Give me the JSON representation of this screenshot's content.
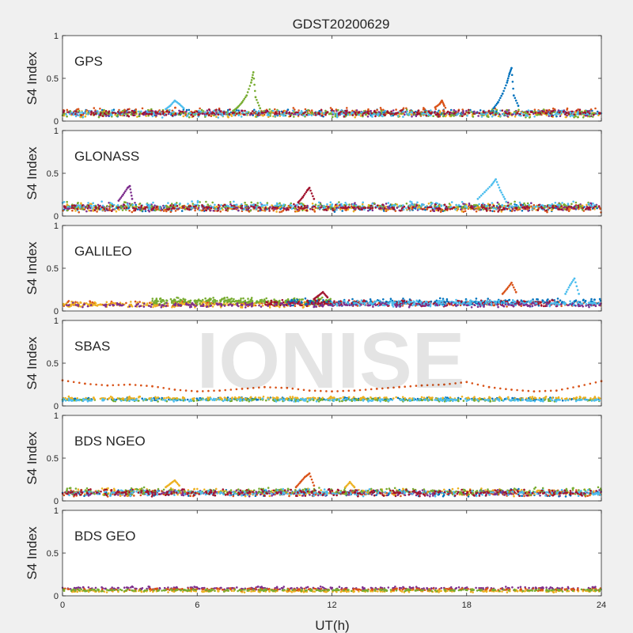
{
  "watermark": "IONISE",
  "chart_data": [
    {
      "type": "scatter",
      "title": "GDST20200629",
      "panel_label": "GPS",
      "ylabel": "S4 Index",
      "xlabel": "",
      "xlim": [
        0,
        24
      ],
      "ylim": [
        0,
        1
      ],
      "xticks": [
        "0",
        "6",
        "12",
        "18",
        "24"
      ],
      "yticks": [
        "0",
        "0.5",
        "1"
      ],
      "baseline": [
        0.03,
        0.17
      ],
      "bands": [
        {
          "color": "#0072BD",
          "x": [
            0,
            24
          ],
          "y": [
            0.05,
            0.14
          ]
        },
        {
          "color": "#D95319",
          "x": [
            0,
            24
          ],
          "y": [
            0.05,
            0.16
          ]
        },
        {
          "color": "#EDB120",
          "x": [
            0,
            24
          ],
          "y": [
            0.04,
            0.13
          ]
        },
        {
          "color": "#7E2F8E",
          "x": [
            0,
            24
          ],
          "y": [
            0.05,
            0.13
          ]
        },
        {
          "color": "#77AC30",
          "x": [
            0,
            24
          ],
          "y": [
            0.04,
            0.14
          ]
        },
        {
          "color": "#4DBEEE",
          "x": [
            0,
            24
          ],
          "y": [
            0.04,
            0.13
          ]
        },
        {
          "color": "#A2142F",
          "x": [
            0,
            24
          ],
          "y": [
            0.05,
            0.14
          ]
        }
      ],
      "series": [
        {
          "color": "#77AC30",
          "x": [
            7.6,
            7.8,
            8.0,
            8.2,
            8.4,
            8.5,
            8.6,
            8.8
          ],
          "y": [
            0.12,
            0.16,
            0.22,
            0.3,
            0.45,
            0.57,
            0.28,
            0.15
          ]
        },
        {
          "color": "#0072BD",
          "x": [
            19.2,
            19.4,
            19.6,
            19.8,
            19.9,
            20.0,
            20.1,
            20.3
          ],
          "y": [
            0.15,
            0.22,
            0.32,
            0.45,
            0.55,
            0.62,
            0.3,
            0.18
          ]
        },
        {
          "color": "#4DBEEE",
          "x": [
            4.6,
            4.8,
            5.0,
            5.2,
            5.4
          ],
          "y": [
            0.14,
            0.18,
            0.24,
            0.2,
            0.15
          ]
        },
        {
          "color": "#D95319",
          "x": [
            16.6,
            16.8,
            16.9,
            17.0
          ],
          "y": [
            0.16,
            0.2,
            0.24,
            0.18
          ]
        }
      ]
    },
    {
      "type": "scatter",
      "panel_label": "GLONASS",
      "ylabel": "S4 Index",
      "xlabel": "",
      "xlim": [
        0,
        24
      ],
      "ylim": [
        0,
        1
      ],
      "xticks": [
        "0",
        "6",
        "12",
        "18",
        "24"
      ],
      "yticks": [
        "0",
        "0.5",
        "1"
      ],
      "baseline": [
        0.04,
        0.18
      ],
      "bands": [
        {
          "color": "#0072BD",
          "x": [
            0,
            24
          ],
          "y": [
            0.05,
            0.14
          ]
        },
        {
          "color": "#D95319",
          "x": [
            0,
            24
          ],
          "y": [
            0.04,
            0.13
          ]
        },
        {
          "color": "#EDB120",
          "x": [
            0,
            24
          ],
          "y": [
            0.05,
            0.15
          ]
        },
        {
          "color": "#7E2F8E",
          "x": [
            0,
            24
          ],
          "y": [
            0.05,
            0.16
          ]
        },
        {
          "color": "#77AC30",
          "x": [
            0,
            24
          ],
          "y": [
            0.06,
            0.17
          ]
        },
        {
          "color": "#4DBEEE",
          "x": [
            0,
            24
          ],
          "y": [
            0.06,
            0.18
          ]
        },
        {
          "color": "#A2142F",
          "x": [
            0,
            24
          ],
          "y": [
            0.05,
            0.14
          ]
        }
      ],
      "series": [
        {
          "color": "#7E2F8E",
          "x": [
            2.5,
            2.7,
            2.9,
            3.0,
            3.1
          ],
          "y": [
            0.18,
            0.25,
            0.33,
            0.35,
            0.2
          ]
        },
        {
          "color": "#A2142F",
          "x": [
            10.5,
            10.7,
            10.9,
            11.0,
            11.2
          ],
          "y": [
            0.16,
            0.22,
            0.3,
            0.33,
            0.2
          ]
        },
        {
          "color": "#4DBEEE",
          "x": [
            18.5,
            18.8,
            19.1,
            19.3,
            19.5,
            19.7
          ],
          "y": [
            0.2,
            0.28,
            0.36,
            0.43,
            0.3,
            0.2
          ]
        }
      ]
    },
    {
      "type": "scatter",
      "panel_label": "GALILEO",
      "ylabel": "S4 Index",
      "xlabel": "",
      "xlim": [
        0,
        24
      ],
      "ylim": [
        0,
        1
      ],
      "xticks": [
        "0",
        "6",
        "12",
        "18",
        "24"
      ],
      "yticks": [
        "0",
        "0.5",
        "1"
      ],
      "baseline": [
        0.05,
        0.14
      ],
      "bands": [
        {
          "color": "#D95319",
          "x": [
            0,
            24
          ],
          "y": [
            0.05,
            0.12
          ]
        },
        {
          "color": "#EDB120",
          "x": [
            0,
            11
          ],
          "y": [
            0.04,
            0.11
          ]
        },
        {
          "color": "#77AC30",
          "x": [
            4,
            12
          ],
          "y": [
            0.07,
            0.16
          ]
        },
        {
          "color": "#0072BD",
          "x": [
            10,
            24
          ],
          "y": [
            0.06,
            0.15
          ]
        },
        {
          "color": "#A2142F",
          "x": [
            9,
            22
          ],
          "y": [
            0.05,
            0.13
          ]
        },
        {
          "color": "#4DBEEE",
          "x": [
            12,
            24
          ],
          "y": [
            0.05,
            0.13
          ]
        },
        {
          "color": "#7E2F8E",
          "x": [
            0,
            24
          ],
          "y": [
            0.04,
            0.1
          ]
        }
      ],
      "series": [
        {
          "color": "#A2142F",
          "x": [
            11.2,
            11.4,
            11.6,
            11.8
          ],
          "y": [
            0.14,
            0.18,
            0.22,
            0.16
          ]
        },
        {
          "color": "#D95319",
          "x": [
            19.6,
            19.8,
            20.0,
            20.2
          ],
          "y": [
            0.2,
            0.26,
            0.33,
            0.22
          ]
        },
        {
          "color": "#4DBEEE",
          "x": [
            22.4,
            22.6,
            22.8,
            23.0
          ],
          "y": [
            0.2,
            0.3,
            0.38,
            0.2
          ]
        }
      ]
    },
    {
      "type": "scatter",
      "panel_label": "SBAS",
      "ylabel": "S4 Index",
      "xlabel": "",
      "xlim": [
        0,
        24
      ],
      "ylim": [
        0,
        1
      ],
      "xticks": [
        "0",
        "6",
        "12",
        "18",
        "24"
      ],
      "yticks": [
        "0",
        "0.5",
        "1"
      ],
      "baseline": [
        0.05,
        0.1
      ],
      "bands": [
        {
          "color": "#0072BD",
          "x": [
            0,
            24
          ],
          "y": [
            0.06,
            0.1
          ]
        },
        {
          "color": "#77AC30",
          "x": [
            0,
            24
          ],
          "y": [
            0.05,
            0.09
          ]
        },
        {
          "color": "#EDB120",
          "x": [
            0,
            24
          ],
          "y": [
            0.07,
            0.11
          ]
        },
        {
          "color": "#4DBEEE",
          "x": [
            0,
            24
          ],
          "y": [
            0.05,
            0.09
          ]
        }
      ],
      "series": [
        {
          "color": "#D95319",
          "x": [
            0,
            1,
            2,
            3,
            4,
            5,
            6,
            7,
            8,
            9,
            10,
            11,
            12,
            13,
            14,
            15,
            16,
            17,
            18,
            19,
            20,
            21,
            22,
            23,
            24
          ],
          "y": [
            0.3,
            0.26,
            0.24,
            0.25,
            0.23,
            0.19,
            0.17,
            0.18,
            0.2,
            0.22,
            0.21,
            0.18,
            0.17,
            0.18,
            0.2,
            0.22,
            0.24,
            0.25,
            0.28,
            0.22,
            0.19,
            0.17,
            0.18,
            0.23,
            0.29
          ]
        }
      ]
    },
    {
      "type": "scatter",
      "panel_label": "BDS NGEO",
      "ylabel": "S4 Index",
      "xlabel": "",
      "xlim": [
        0,
        24
      ],
      "ylim": [
        0,
        1
      ],
      "xticks": [
        "0",
        "6",
        "12",
        "18",
        "24"
      ],
      "yticks": [
        "0",
        "0.5",
        "1"
      ],
      "baseline": [
        0.04,
        0.16
      ],
      "bands": [
        {
          "color": "#0072BD",
          "x": [
            0,
            24
          ],
          "y": [
            0.05,
            0.14
          ]
        },
        {
          "color": "#D95319",
          "x": [
            0,
            24
          ],
          "y": [
            0.05,
            0.13
          ]
        },
        {
          "color": "#EDB120",
          "x": [
            0,
            24
          ],
          "y": [
            0.05,
            0.15
          ]
        },
        {
          "color": "#7E2F8E",
          "x": [
            0,
            24
          ],
          "y": [
            0.05,
            0.13
          ]
        },
        {
          "color": "#77AC30",
          "x": [
            0,
            24
          ],
          "y": [
            0.06,
            0.16
          ]
        },
        {
          "color": "#4DBEEE",
          "x": [
            0,
            24
          ],
          "y": [
            0.05,
            0.14
          ]
        },
        {
          "color": "#A2142F",
          "x": [
            0,
            24
          ],
          "y": [
            0.05,
            0.14
          ]
        }
      ],
      "series": [
        {
          "color": "#D95319",
          "x": [
            10.4,
            10.6,
            10.8,
            11.0,
            11.2
          ],
          "y": [
            0.16,
            0.22,
            0.28,
            0.32,
            0.18
          ]
        },
        {
          "color": "#EDB120",
          "x": [
            4.6,
            4.8,
            5.0,
            5.2
          ],
          "y": [
            0.16,
            0.2,
            0.24,
            0.18
          ]
        },
        {
          "color": "#EDB120",
          "x": [
            12.6,
            12.8,
            13.0
          ],
          "y": [
            0.16,
            0.22,
            0.16
          ]
        }
      ]
    },
    {
      "type": "scatter",
      "panel_label": "BDS GEO",
      "ylabel": "S4 Index",
      "xlabel": "UT(h)",
      "xlim": [
        0,
        24
      ],
      "ylim": [
        0,
        1
      ],
      "xticks": [
        "0",
        "6",
        "12",
        "18",
        "24"
      ],
      "yticks": [
        "0",
        "0.5",
        "1"
      ],
      "baseline": [
        0.06,
        0.1
      ],
      "bands": [
        {
          "color": "#7E2F8E",
          "x": [
            0,
            24
          ],
          "y": [
            0.07,
            0.11
          ]
        },
        {
          "color": "#EDB120",
          "x": [
            0,
            24
          ],
          "y": [
            0.04,
            0.07
          ]
        },
        {
          "color": "#D95319",
          "x": [
            0,
            24
          ],
          "y": [
            0.06,
            0.09
          ]
        },
        {
          "color": "#77AC30",
          "x": [
            0,
            24
          ],
          "y": [
            0.05,
            0.08
          ]
        }
      ],
      "series": []
    }
  ]
}
